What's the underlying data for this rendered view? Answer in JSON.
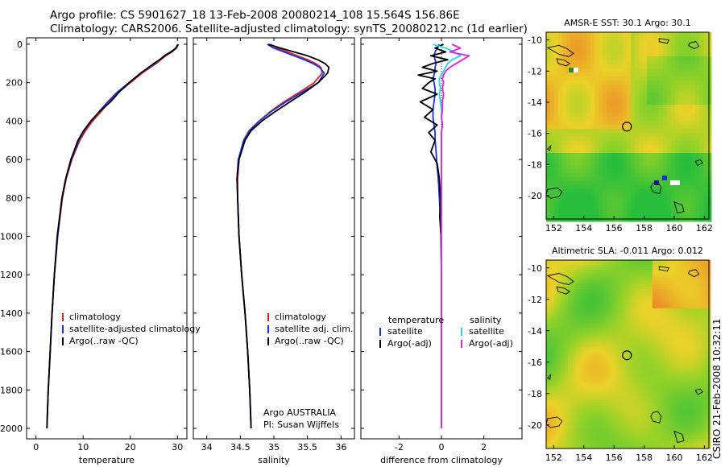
{
  "titles": {
    "line1": "Argo profile: CS 5901627_18 13-Feb-2008 20080214_108 15.564S 156.86E",
    "line2": "Climatology: CARS2006. Satellite-adjusted climatology: synTS_20080212.nc (1d earlier)"
  },
  "footer": {
    "agency": "Argo AUSTRALIA",
    "pi": "PI: Susan Wijffels",
    "stamp": "CSIRO 21-Feb-2008 10:32:11"
  },
  "colors": {
    "climatology": "#e02020",
    "satellite": "#1a2fe0",
    "argo": "#000000",
    "sal_satellite": "#22d8e8",
    "sal_argo": "#e020e0",
    "ocean_warm": "#e8c020",
    "ocean_cool": "#30c030"
  },
  "chart_data": [
    {
      "type": "line",
      "xlabel": "temperature",
      "ylim": [
        2000,
        0
      ],
      "xlim": [
        -2,
        32
      ],
      "xticks": [
        0,
        10,
        20,
        30
      ],
      "yticks": [
        0,
        200,
        400,
        600,
        800,
        1000,
        1200,
        1400,
        1600,
        1800,
        2000
      ],
      "depth": [
        0,
        20,
        40,
        60,
        80,
        100,
        150,
        200,
        250,
        300,
        350,
        400,
        450,
        500,
        600,
        700,
        800,
        1000,
        1200,
        1400,
        1600,
        1800,
        2000
      ],
      "legend": [
        "climatology",
        "satellite-adjusted climatology",
        "Argo(..raw -QC)"
      ],
      "series": [
        {
          "name": "climatology",
          "values": [
            30.2,
            29.8,
            28.8,
            27.5,
            26.5,
            25.5,
            22.5,
            20.0,
            17.5,
            15.5,
            13.8,
            12.0,
            10.5,
            9.3,
            7.6,
            6.4,
            5.6,
            4.6,
            3.9,
            3.4,
            3.0,
            2.6,
            2.3
          ]
        },
        {
          "name": "satellite-adjusted climatology",
          "values": [
            30.1,
            29.7,
            28.5,
            27.2,
            26.3,
            25.3,
            22.2,
            19.7,
            17.2,
            15.2,
            13.4,
            11.7,
            10.2,
            9.1,
            7.5,
            6.3,
            5.5,
            4.6,
            3.9,
            3.4,
            3.0,
            2.6,
            2.3
          ]
        },
        {
          "name": "Argo(..raw -QC)",
          "values": [
            30.1,
            29.6,
            28.7,
            27.3,
            26.2,
            25.0,
            22.2,
            19.8,
            17.6,
            15.8,
            13.5,
            11.6,
            10.1,
            8.9,
            7.4,
            6.3,
            5.5,
            4.5,
            3.9,
            3.4,
            3.0,
            2.6,
            2.3
          ]
        }
      ]
    },
    {
      "type": "line",
      "xlabel": "salinity",
      "ylim": [
        2000,
        0
      ],
      "xlim": [
        33.8,
        36.2
      ],
      "xticks": [
        34,
        34.5,
        35,
        35.5,
        36
      ],
      "depth": [
        0,
        20,
        40,
        60,
        80,
        100,
        120,
        150,
        200,
        250,
        300,
        350,
        400,
        450,
        500,
        600,
        700,
        800,
        1000,
        1200,
        1400,
        1600,
        1800,
        2000
      ],
      "legend": [
        "climatology",
        "satellite adj. clim.",
        "Argo(..raw -QC)"
      ],
      "series": [
        {
          "name": "climatology",
          "values": [
            34.95,
            35.05,
            35.2,
            35.35,
            35.5,
            35.62,
            35.7,
            35.72,
            35.6,
            35.38,
            35.15,
            34.95,
            34.78,
            34.64,
            34.56,
            34.48,
            34.46,
            34.46,
            34.48,
            34.52,
            34.57,
            34.61,
            34.64,
            34.66
          ]
        },
        {
          "name": "satellite adj. clim.",
          "values": [
            34.9,
            35.0,
            35.15,
            35.3,
            35.45,
            35.58,
            35.68,
            35.75,
            35.66,
            35.42,
            35.18,
            34.96,
            34.78,
            34.63,
            34.55,
            34.47,
            34.45,
            34.46,
            34.48,
            34.52,
            34.57,
            34.61,
            34.64,
            34.66
          ]
        },
        {
          "name": "Argo(..raw -QC)",
          "values": [
            34.92,
            35.1,
            35.3,
            35.5,
            35.65,
            35.76,
            35.82,
            35.8,
            35.66,
            35.46,
            35.24,
            35.02,
            34.82,
            34.66,
            34.57,
            34.48,
            34.45,
            34.46,
            34.48,
            34.52,
            34.57,
            34.61,
            34.64,
            34.66
          ]
        }
      ]
    },
    {
      "type": "line",
      "xlabel": "difference from climatology",
      "ylim": [
        2000,
        0
      ],
      "xlim": [
        -3.8,
        3.8
      ],
      "xticks": [
        -2,
        0,
        2
      ],
      "depth": [
        0,
        20,
        40,
        60,
        80,
        100,
        120,
        140,
        160,
        180,
        200,
        230,
        260,
        300,
        340,
        380,
        420,
        460,
        500,
        560,
        620,
        700,
        800,
        900,
        1000,
        1200,
        1400,
        1600,
        1800,
        2000
      ],
      "legend_headers": [
        "temperature",
        "salinity"
      ],
      "legend": [
        "satellite",
        "Argo(-adj)",
        "satellite",
        "Argo(-adj)"
      ],
      "series": [
        {
          "name": "satellite",
          "values": [
            -0.1,
            -0.2,
            -0.3,
            -0.35,
            -0.3,
            -0.25,
            -0.3,
            -0.3,
            -0.35,
            -0.4,
            -0.35,
            -0.3,
            -0.3,
            -0.35,
            -0.4,
            -0.4,
            -0.35,
            -0.3,
            -0.3,
            -0.25,
            -0.22,
            -0.15,
            -0.1,
            -0.05,
            -0.02,
            0.0,
            0.0,
            0.0,
            0.0,
            0.0
          ]
        },
        {
          "name": "Argo(-adj)",
          "values": [
            0.1,
            -0.3,
            0.2,
            -0.5,
            0.3,
            -0.4,
            -0.9,
            -0.2,
            -1.1,
            -0.3,
            -0.6,
            -0.9,
            -0.2,
            -1.0,
            -0.4,
            -0.8,
            -0.2,
            -0.6,
            -0.3,
            -0.5,
            -0.2,
            -0.1,
            -0.05,
            -0.08,
            -0.02,
            0.0,
            0.0,
            0.0,
            0.0,
            0.0
          ]
        },
        {
          "name": "satellite",
          "values": [
            -0.4,
            0.2,
            0.6,
            0.9,
            0.5,
            0.3,
            0.2,
            0.1,
            0.0,
            -0.1,
            -0.1,
            -0.05,
            -0.1,
            -0.05,
            0.0,
            0.0,
            0.05,
            0.0,
            0.0,
            0.0,
            0.0,
            0.0,
            0.0,
            0.0,
            0.0,
            0.0,
            0.0,
            0.0,
            0.0,
            0.0
          ]
        },
        {
          "name": "Argo(-adj)",
          "values": [
            0.5,
            0.9,
            0.4,
            1.3,
            1.0,
            0.7,
            0.4,
            0.2,
            0.1,
            0.05,
            0.1,
            0.05,
            0.1,
            0.05,
            0.05,
            0.0,
            0.05,
            0.0,
            0.0,
            0.0,
            0.0,
            0.0,
            0.0,
            0.0,
            0.0,
            0.0,
            0.0,
            0.0,
            0.0,
            0.0
          ]
        }
      ]
    },
    {
      "type": "heatmap",
      "title": "AMSR-E SST: 30.1 Argo: 30.1",
      "xlim": [
        151.5,
        162.3
      ],
      "ylim": [
        -21.5,
        -9.5
      ],
      "xticks": [
        152,
        154,
        156,
        158,
        160,
        162
      ],
      "yticks": [
        -10,
        -12,
        -14,
        -16,
        -18,
        -20
      ],
      "marker": {
        "lon": 156.86,
        "lat": -15.564
      }
    },
    {
      "type": "heatmap",
      "title": "Altimetric SLA: -0.011 Argo: 0.012",
      "xlim": [
        151.5,
        162.3
      ],
      "ylim": [
        -21.5,
        -9.5
      ],
      "xticks": [
        152,
        154,
        156,
        158,
        160,
        162
      ],
      "yticks": [
        -10,
        -12,
        -14,
        -16,
        -18,
        -20
      ],
      "marker": {
        "lon": 156.86,
        "lat": -15.564
      }
    }
  ]
}
